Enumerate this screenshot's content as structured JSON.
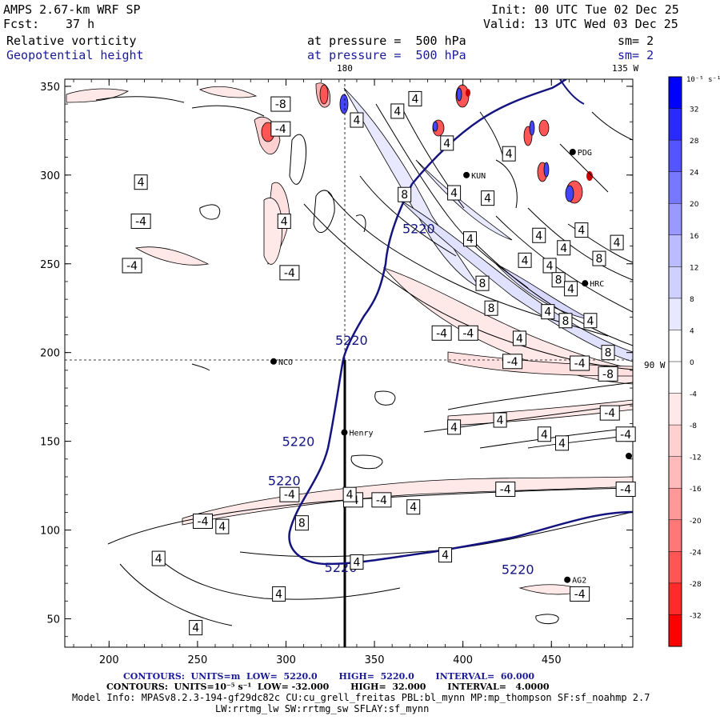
{
  "header": {
    "model": "AMPS 2.67-km WRF SP",
    "init": "Init: 00 UTC Tue 02 Dec 25",
    "fcst_label": "Fcst:",
    "fcst_value": "37 h",
    "valid": "Valid: 13 UTC Wed 03 Dec 25",
    "field1": "Relative vorticity",
    "field1_level": "at pressure =  500 hPa",
    "field1_sm": "sm= 2",
    "field2": "Geopotential height",
    "field2_level": "at pressure =  500 hPa",
    "field2_sm": "sm= 2"
  },
  "map_labels": {
    "lon_180": "180",
    "lon_135w": "135 W",
    "lon_90w": "90 W",
    "stations": [
      {
        "name": "NCO",
        "x": 293,
        "y": 195
      },
      {
        "name": "Henry",
        "x": 333,
        "y": 155
      },
      {
        "name": "HRC",
        "x": 469,
        "y": 239
      },
      {
        "name": "PDG",
        "x": 462,
        "y": 313
      },
      {
        "name": "KUN",
        "x": 402,
        "y": 300
      },
      {
        "name": "AG2",
        "x": 459,
        "y": 72
      }
    ]
  },
  "axes": {
    "x_ticks": [
      200,
      250,
      300,
      350,
      400,
      450
    ],
    "y_ticks": [
      50,
      100,
      150,
      200,
      250,
      300,
      350
    ],
    "x_range": [
      175,
      496
    ],
    "y_range": [
      34,
      354
    ]
  },
  "colorbar": {
    "unit_label": "10⁻⁵ s⁻¹",
    "levels": [
      -36,
      -32,
      -28,
      -24,
      -20,
      -16,
      -12,
      -8,
      -4,
      0,
      4,
      8,
      12,
      16,
      20,
      24,
      28,
      32,
      36
    ],
    "tick_labels": [
      "32",
      "28",
      "24",
      "20",
      "16",
      "12",
      "8",
      "4",
      "0",
      "-4",
      "-8",
      "-12",
      "-16",
      "-20",
      "-24",
      "-28",
      "-32"
    ],
    "colors": [
      "#ff0000",
      "#ff2a2a",
      "#ff5555",
      "#ff7777",
      "#ff9999",
      "#ffbbbb",
      "#ffd0d0",
      "#ffe8e8",
      "#ffffff",
      "#ffffff",
      "#e8e8ff",
      "#d0d0ff",
      "#bbbbff",
      "#9999ff",
      "#7777ff",
      "#5555ff",
      "#2a2aff",
      "#0000ff"
    ]
  },
  "contour_labels": {
    "height": [
      {
        "text": "5220",
        "x": 375,
        "y": 270
      },
      {
        "text": "5220",
        "x": 337,
        "y": 207
      },
      {
        "text": "5220",
        "x": 307,
        "y": 150
      },
      {
        "text": "5220",
        "x": 299,
        "y": 128
      },
      {
        "text": "5220",
        "x": 331,
        "y": 79
      },
      {
        "text": "5220",
        "x": 431,
        "y": 78
      }
    ],
    "vorticity": [
      {
        "text": "-8",
        "x": 297,
        "y": 340
      },
      {
        "text": "-4",
        "x": 297,
        "y": 326
      },
      {
        "text": "4",
        "x": 218,
        "y": 296
      },
      {
        "text": "-4",
        "x": 218,
        "y": 274
      },
      {
        "text": "-4",
        "x": 213,
        "y": 249
      },
      {
        "text": "4",
        "x": 299,
        "y": 274
      },
      {
        "text": "-4",
        "x": 302,
        "y": 245
      },
      {
        "text": "4",
        "x": 340,
        "y": 331
      },
      {
        "text": "4",
        "x": 363,
        "y": 336
      },
      {
        "text": "4",
        "x": 373,
        "y": 343
      },
      {
        "text": "8",
        "x": 367,
        "y": 289
      },
      {
        "text": "4",
        "x": 395,
        "y": 290
      },
      {
        "text": "4",
        "x": 414,
        "y": 287
      },
      {
        "text": "4",
        "x": 426,
        "y": 312
      },
      {
        "text": "4",
        "x": 391,
        "y": 318
      },
      {
        "text": "4",
        "x": 404,
        "y": 264
      },
      {
        "text": "4",
        "x": 443,
        "y": 266
      },
      {
        "text": "4",
        "x": 457,
        "y": 259
      },
      {
        "text": "4",
        "x": 449,
        "y": 249
      },
      {
        "text": "4",
        "x": 435,
        "y": 252
      },
      {
        "text": "4",
        "x": 467,
        "y": 269
      },
      {
        "text": "8",
        "x": 477,
        "y": 253
      },
      {
        "text": "4",
        "x": 487,
        "y": 262
      },
      {
        "text": "8",
        "x": 411,
        "y": 239
      },
      {
        "text": "8",
        "x": 454,
        "y": 241
      },
      {
        "text": "4",
        "x": 461,
        "y": 236
      },
      {
        "text": "8",
        "x": 416,
        "y": 225
      },
      {
        "text": "4",
        "x": 448,
        "y": 223
      },
      {
        "text": "8",
        "x": 458,
        "y": 218
      },
      {
        "text": "4",
        "x": 472,
        "y": 218
      },
      {
        "text": "-4",
        "x": 388,
        "y": 211
      },
      {
        "text": "-4",
        "x": 403,
        "y": 211
      },
      {
        "text": "4",
        "x": 432,
        "y": 208
      },
      {
        "text": "8",
        "x": 482,
        "y": 200
      },
      {
        "text": "-4",
        "x": 428,
        "y": 195
      },
      {
        "text": "-4",
        "x": 466,
        "y": 194
      },
      {
        "text": "-8",
        "x": 482,
        "y": 188
      },
      {
        "text": "-4",
        "x": 483,
        "y": 166
      },
      {
        "text": "4",
        "x": 421,
        "y": 162
      },
      {
        "text": "4",
        "x": 446,
        "y": 154
      },
      {
        "text": "4",
        "x": 456,
        "y": 149
      },
      {
        "text": "-4",
        "x": 492,
        "y": 154
      },
      {
        "text": "4",
        "x": 395,
        "y": 158
      },
      {
        "text": "-4",
        "x": 424,
        "y": 123
      },
      {
        "text": "-4",
        "x": 492,
        "y": 123
      },
      {
        "text": "-4",
        "x": 302,
        "y": 120
      },
      {
        "text": "-4",
        "x": 338,
        "y": 117
      },
      {
        "text": "-4",
        "x": 354,
        "y": 117
      },
      {
        "text": "4",
        "x": 336,
        "y": 120
      },
      {
        "text": "4",
        "x": 372,
        "y": 113
      },
      {
        "text": "-4",
        "x": 253,
        "y": 105
      },
      {
        "text": "4",
        "x": 264,
        "y": 102
      },
      {
        "text": "8",
        "x": 309,
        "y": 104
      },
      {
        "text": "4",
        "x": 228,
        "y": 84
      },
      {
        "text": "4",
        "x": 340,
        "y": 82
      },
      {
        "text": "4",
        "x": 390,
        "y": 86
      },
      {
        "text": "4",
        "x": 296,
        "y": 64
      },
      {
        "text": "4",
        "x": 249,
        "y": 45
      },
      {
        "text": "-4",
        "x": 466,
        "y": 64
      }
    ]
  },
  "footer": {
    "line1": "CONTOURS:  UNITS=m  LOW=  5220.0       HIGH=  5220.0       INTERVAL=  60.000",
    "line2": "CONTOURS:  UNITS=10⁻⁵ s⁻¹  LOW= -32.000       HIGH=  32.000       INTERVAL=   4.0000",
    "line3": "Model Info: MPASv8.2.3-194-gf29dc82c CU:cu_grell_freitas PBL:bl_mynn MP:mp_thompson SF:sf_noahmp 2.7",
    "line4": "LW:rrtmg_lw SW:rrtmg_sw SFLAY:sf_mynn"
  }
}
